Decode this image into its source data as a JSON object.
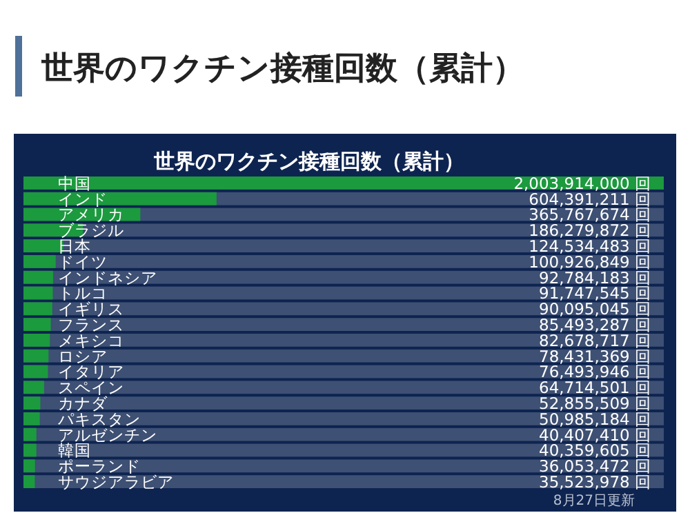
{
  "chart_data": {
    "type": "bar",
    "orientation": "horizontal",
    "title": "世界のワクチン接種回数（累計）",
    "subtitle": "世界のワクチン接種回数（累計）",
    "categories": [
      "中国",
      "インド",
      "アメリカ",
      "ブラジル",
      "日本",
      "ドイツ",
      "インドネシア",
      "トルコ",
      "イギリス",
      "フランス",
      "メキシコ",
      "ロシア",
      "イタリア",
      "スペイン",
      "カナダ",
      "パキスタン",
      "アルゼンチン",
      "韓国",
      "ポーランド",
      "サウジアラビア"
    ],
    "values": [
      2003914000,
      604391211,
      365767674,
      186279872,
      124534483,
      100926849,
      92784183,
      91747545,
      90095045,
      85493287,
      82678717,
      78431369,
      76493946,
      64714501,
      52855509,
      50985184,
      40407410,
      40359605,
      36053472,
      35523978
    ],
    "value_labels": [
      "2,003,914,000 回",
      "604,391,211 回",
      "365,767,674 回",
      "186,279,872 回",
      "124,534,483 回",
      "100,926,849 回",
      "92,784,183 回",
      "91,747,545 回",
      "90,095,045 回",
      "85,493,287 回",
      "82,678,717 回",
      "78,431,369 回",
      "76,493,946 回",
      "64,714,501 回",
      "52,855,509 回",
      "50,985,184 回",
      "40,407,410 回",
      "40,359,605 回",
      "36,053,472 回",
      "35,523,978 回"
    ],
    "color": "#1c9a3e",
    "annotations": [
      "8月27日更新"
    ]
  }
}
